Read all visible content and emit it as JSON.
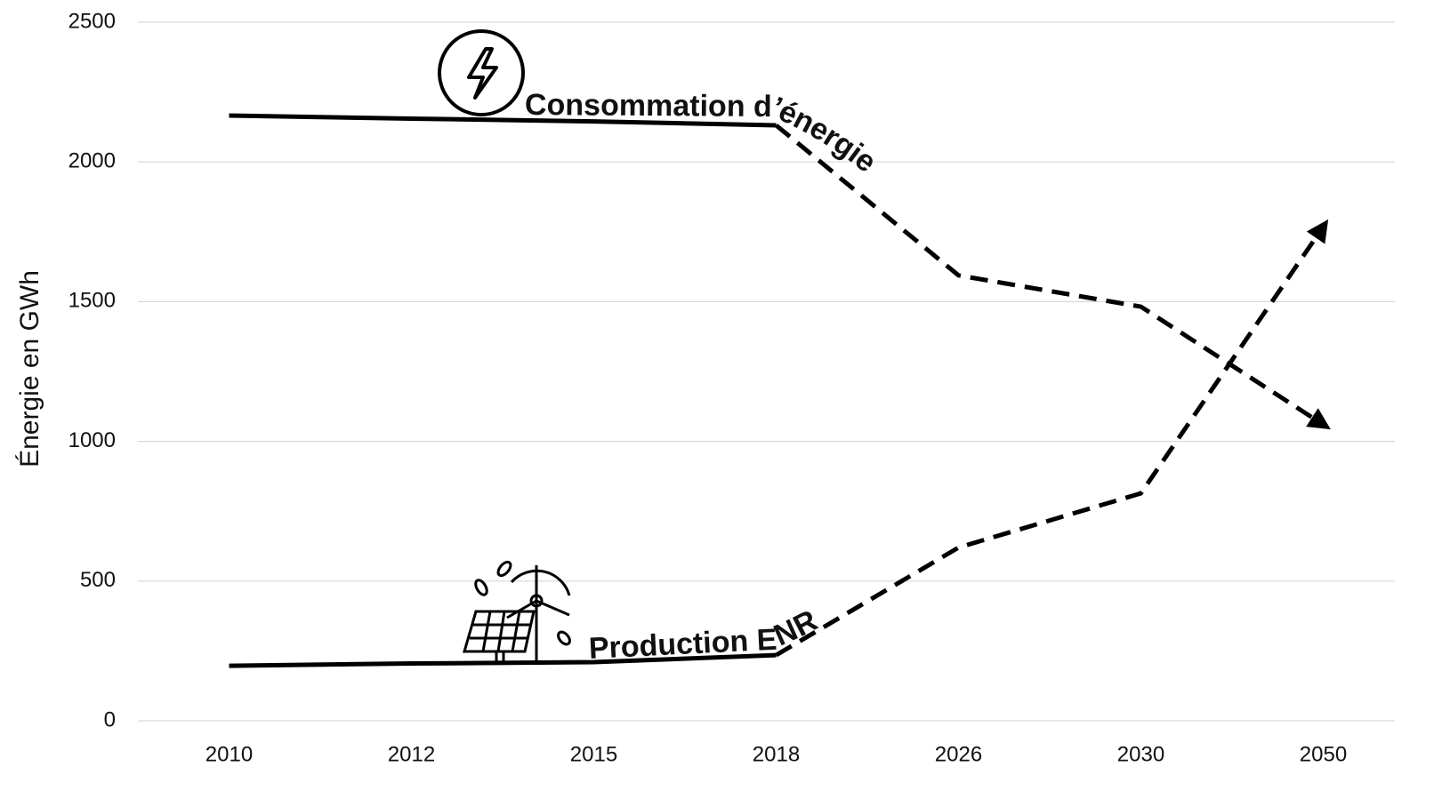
{
  "chart_data": {
    "type": "line",
    "y_label": "Énergie en GWh",
    "categories": [
      "2010",
      "2012",
      "2015",
      "2018",
      "2026",
      "2030",
      "2050"
    ],
    "series": [
      {
        "name": "Consommation d’énergie",
        "color": "#000000",
        "values": [
          2166,
          2155,
          2145,
          2131,
          1594,
          1482,
          1060
        ]
      },
      {
        "name": "Production ENR",
        "color": "#000000",
        "values": [
          197,
          205,
          210,
          235,
          620,
          814,
          1768
        ]
      }
    ],
    "projection_from": "2018",
    "ylim": [
      0,
      2500
    ],
    "yticks": [
      0,
      500,
      1000,
      1500,
      2000,
      2500
    ],
    "grid": true
  }
}
